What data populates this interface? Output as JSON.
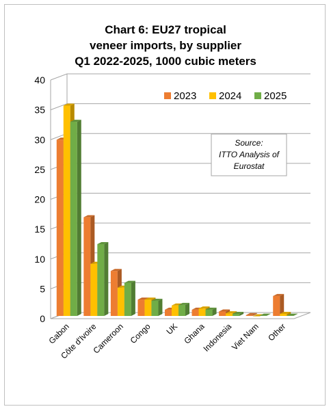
{
  "chart_data": {
    "type": "bar",
    "title": "Chart 6: EU27 tropical veneer imports, by supplier Q1 2022-2025, 1000 cubic meters",
    "title_lines": [
      "Chart 6: EU27 tropical",
      "veneer imports, by supplier",
      "Q1 2022-2025, 1000 cubic meters"
    ],
    "categories": [
      "Gabon",
      "Côte d'Ivoire",
      "Cameroon",
      "Congo",
      "UK",
      "Ghana",
      "Indonesia",
      "Viet Nam",
      "Other"
    ],
    "series": [
      {
        "name": "2023",
        "color": "#ED7D31",
        "values": [
          30.0,
          17.0,
          8.0,
          3.2,
          1.5,
          1.5,
          1.2,
          0.6,
          3.8
        ]
      },
      {
        "name": "2024",
        "color": "#FFC000",
        "values": [
          35.7,
          9.2,
          5.2,
          3.2,
          2.2,
          1.7,
          0.9,
          0.4,
          0.8
        ]
      },
      {
        "name": "2025",
        "color": "#70AD47",
        "values": [
          33.0,
          12.5,
          6.0,
          3.0,
          2.3,
          1.5,
          0.8,
          0.5,
          0.5
        ]
      }
    ],
    "ylim": [
      0,
      40
    ],
    "yticks": [
      0,
      5,
      10,
      15,
      20,
      25,
      30,
      35,
      40
    ],
    "xlabel": "",
    "ylabel": "",
    "grid": true,
    "legend_position": "top-right",
    "annotation": [
      "Source:",
      "ITTO Analysis of",
      "Eurostat"
    ]
  }
}
